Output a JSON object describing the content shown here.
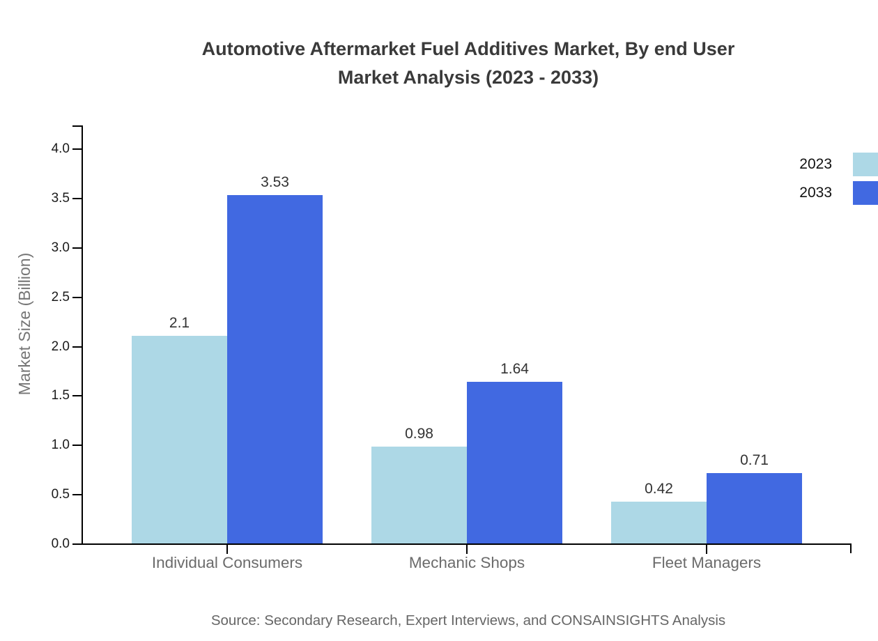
{
  "chart_data": {
    "type": "bar",
    "title_line1": "Automotive Aftermarket Fuel Additives Market, By end User",
    "title_line2": "Market Analysis (2023 - 2033)",
    "ylabel": "Market Size (Billion)",
    "xlabel": "",
    "categories": [
      "Individual Consumers",
      "Mechanic Shops",
      "Fleet Managers"
    ],
    "series": [
      {
        "name": "2023",
        "color": "#ADD8E6",
        "values": [
          2.1,
          0.98,
          0.42
        ]
      },
      {
        "name": "2033",
        "color": "#4169E1",
        "values": [
          3.53,
          1.64,
          0.71
        ]
      }
    ],
    "ylim": [
      0.0,
      4.0
    ],
    "ytick_labels": [
      "0.0",
      "0.5",
      "1.0",
      "1.5",
      "2.0",
      "2.5",
      "3.0",
      "3.5",
      "4.0"
    ],
    "grid": false,
    "legend_position": "top-right",
    "bar_value_labels": true
  },
  "source_note": "Source: Secondary Research, Expert Interviews, and CONSAINSIGHTS Analysis",
  "colors": {
    "series_2023": "#ADD8E6",
    "series_2033": "#4169E1",
    "axis": "#000000",
    "title_text": "#3a3a3a",
    "category_text": "#6b6b6b",
    "value_text": "#333333",
    "ylabel_text": "#757575",
    "source_text": "#666666",
    "background": "#ffffff"
  }
}
